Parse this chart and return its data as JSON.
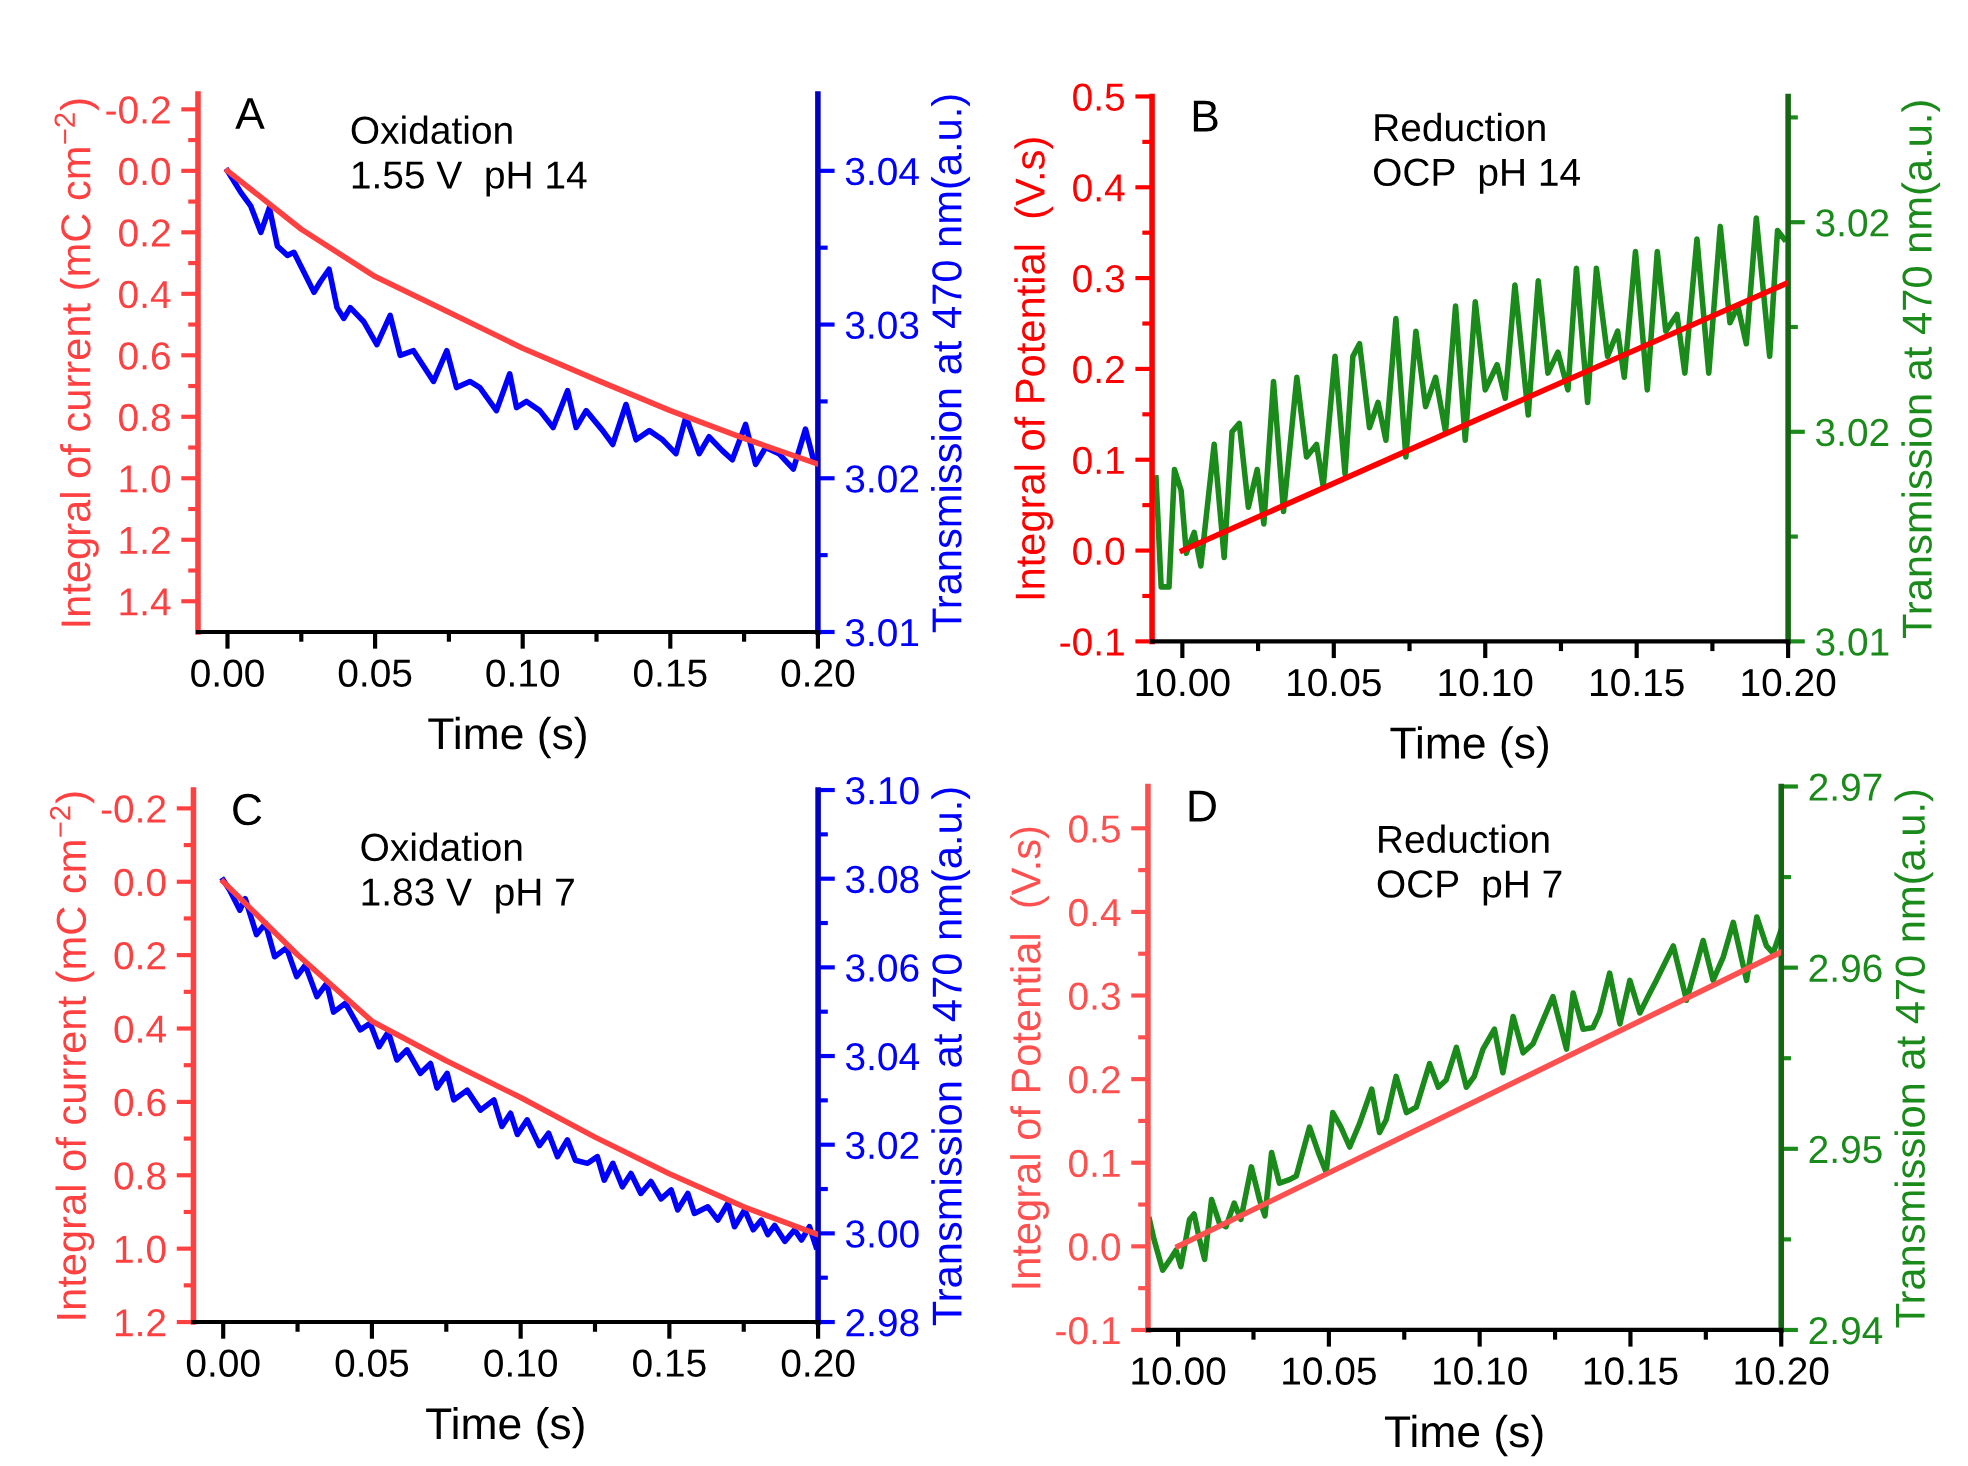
{
  "chart_data": [
    {
      "type": "line",
      "title": "A",
      "annotations": [
        "Oxidation\n1.55 V  pH 14"
      ],
      "xlabel": "Time (s)",
      "ylabel": "Integral of current (mC cm$^{−2}$)",
      "y2label": "Transmission at 470 nm(a.u.)",
      "xlim": [
        -0.01,
        0.2
      ],
      "xticks": [
        {
          "value": 0,
          "label": "0.00"
        },
        {
          "value": 0.05,
          "label": "0.05"
        },
        {
          "value": 0.1,
          "label": "0.10"
        },
        {
          "value": 0.15,
          "label": "0.15"
        },
        {
          "value": 0.2,
          "label": "0.20"
        },
        {
          "value": 0.025,
          "label": null
        },
        {
          "value": 0.075,
          "label": null
        },
        {
          "value": 0.125,
          "label": null
        },
        {
          "value": 0.175,
          "label": null
        }
      ],
      "ylim": [
        1.5,
        -0.25
      ],
      "yticks": [
        -0.2,
        {
          "value": 0,
          "label": "0.0"
        },
        0.2,
        0.4,
        0.6,
        0.8,
        {
          "value": 1,
          "label": "1.0"
        },
        1.2,
        1.4,
        {
          "value": -0.1,
          "label": null
        },
        {
          "value": 0.1,
          "label": null
        },
        {
          "value": 0.3,
          "label": null
        },
        {
          "value": 0.5,
          "label": null
        },
        {
          "value": 0.7,
          "label": null
        },
        {
          "value": 0.9,
          "label": null
        },
        {
          "value": 1.1,
          "label": null
        },
        {
          "value": 1.3,
          "label": null
        }
      ],
      "y2lim": [
        3.01,
        3.045
      ],
      "y2ticks": [
        3.01,
        3.02,
        3.03,
        3.04,
        {
          "value": 3.015,
          "label": null
        },
        {
          "value": 3.025,
          "label": null
        },
        {
          "value": 3.035,
          "label": null
        }
      ],
      "series": [
        {
          "color": "#ff4040",
          "x": [
            0,
            0.025,
            0.05,
            0.075,
            0.1,
            0.125,
            0.15,
            0.175,
            0.2
          ],
          "values": [
            0,
            0.19,
            0.344,
            0.46,
            0.577,
            0.68,
            0.78,
            0.87,
            0.954
          ]
        },
        {
          "color": "#0000ff",
          "axis": "y2",
          "x": [
            0,
            0.0045,
            0.0079,
            0.0113,
            0.0142,
            0.0169,
            0.0203,
            0.0225,
            0.0259,
            0.0293,
            0.0315,
            0.0344,
            0.0371,
            0.0394,
            0.0416,
            0.0461,
            0.0506,
            0.0551,
            0.0585,
            0.063,
            0.0698,
            0.0743,
            0.0776,
            0.0821,
            0.0855,
            0.0911,
            0.0956,
            0.0979,
            0.1013,
            0.1058,
            0.1103,
            0.1152,
            0.1181,
            0.1215,
            0.1271,
            0.1305,
            0.135,
            0.1384,
            0.1429,
            0.1474,
            0.1519,
            0.1553,
            0.1598,
            0.1631,
            0.1676,
            0.171,
            0.1755,
            0.1789,
            0.1823,
            0.1868,
            0.1917,
            0.1958,
            0.1985
          ],
          "values": [
            3.04,
            3.0386,
            3.0377,
            3.036,
            3.0376,
            3.0351,
            3.0345,
            3.0347,
            3.0334,
            3.0321,
            3.0328,
            3.0336,
            3.0311,
            3.0304,
            3.0311,
            3.0302,
            3.0287,
            3.0306,
            3.028,
            3.0283,
            3.0263,
            3.0283,
            3.0259,
            3.0263,
            3.0259,
            3.0244,
            3.0268,
            3.0246,
            3.025,
            3.0244,
            3.0233,
            3.0257,
            3.0233,
            3.0244,
            3.0231,
            3.0222,
            3.0248,
            3.0225,
            3.0231,
            3.0225,
            3.0216,
            3.024,
            3.0216,
            3.0227,
            3.0218,
            3.0212,
            3.0235,
            3.0209,
            3.022,
            3.0216,
            3.0206,
            3.0232,
            3.0212
          ]
        }
      ]
    },
    {
      "type": "line",
      "title": "B",
      "annotations": [
        "Reduction\nOCP  pH 14"
      ],
      "xlabel": "Time (s)",
      "ylabel": "Integral of Potential  (V.s)",
      "y2label": "Transmission at 470 nm(a.u.)",
      "xlim": [
        9.99,
        10.2
      ],
      "xticks": [
        {
          "value": 10.0,
          "label": "10.00"
        },
        {
          "value": 10.05,
          "label": "10.05"
        },
        {
          "value": 10.1,
          "label": "10.10"
        },
        {
          "value": 10.15,
          "label": "10.15"
        },
        {
          "value": 10.2,
          "label": "10.20"
        },
        {
          "value": 10.025,
          "label": null
        },
        {
          "value": 10.075,
          "label": null
        },
        {
          "value": 10.125,
          "label": null
        },
        {
          "value": 10.175,
          "label": null
        }
      ],
      "ylim": [
        -0.1,
        0.5
      ],
      "yticks": [
        -0.1,
        {
          "value": 0,
          "label": "0.0"
        },
        0.1,
        0.2,
        0.3,
        0.4,
        0.5,
        {
          "value": -0.05,
          "label": null
        },
        {
          "value": 0.05,
          "label": null
        },
        {
          "value": 0.15,
          "label": null
        },
        {
          "value": 0.25,
          "label": null
        },
        {
          "value": 0.35,
          "label": null
        },
        {
          "value": 0.45,
          "label": null
        }
      ],
      "y2lim": [
        3.01,
        3.023
      ],
      "y2ticks": [
        3.01,
        {
          "value": 3.015,
          "label": "3.02"
        },
        3.02,
        {
          "value": 3.0125,
          "label": null
        },
        {
          "value": 3.0175,
          "label": null
        },
        {
          "value": 3.0225,
          "label": null
        }
      ],
      "series": [
        {
          "color": "#ff0000",
          "x": [
            10.0,
            10.1,
            10.2
          ],
          "values": [
            0.0,
            0.148,
            0.295
          ]
        },
        {
          "color": "#1a8a1a",
          "axis": "y2",
          "x": [
            9.9913,
            9.993,
            9.9956,
            9.9974,
            9.9996,
            10.0013,
            10.0039,
            10.0061,
            10.0105,
            10.0138,
            10.0164,
            10.0188,
            10.0218,
            10.0247,
            10.0269,
            10.0301,
            10.0334,
            10.0378,
            10.041,
            10.0443,
            10.0465,
            10.0504,
            10.0537,
            10.0563,
            10.0585,
            10.0618,
            10.0646,
            10.0672,
            10.0705,
            10.0738,
            10.0771,
            10.0803,
            10.0836,
            10.0869,
            10.0902,
            10.0934,
            10.0967,
            10.1,
            10.1039,
            10.1066,
            10.1098,
            10.1142,
            10.1175,
            10.1207,
            10.124,
            10.1273,
            10.1301,
            10.1338,
            10.1367,
            10.1404,
            10.1437,
            10.1459,
            10.1496,
            10.1535,
            10.1568,
            10.1596,
            10.1633,
            10.1659,
            10.1699,
            10.1738,
            10.1776,
            10.1808,
            10.1834,
            10.1862,
            10.1895,
            10.1939,
            10.1965,
            10.1987
          ],
          "values": [
            3.0139,
            3.0113,
            3.0113,
            3.0141,
            3.0136,
            3.0121,
            3.0126,
            3.0118,
            3.0147,
            3.012,
            3.015,
            3.0152,
            3.0132,
            3.0141,
            3.0128,
            3.0162,
            3.0131,
            3.0163,
            3.0144,
            3.0147,
            3.0137,
            3.0168,
            3.014,
            3.0168,
            3.0171,
            3.0151,
            3.0157,
            3.0148,
            3.0177,
            3.0144,
            3.0174,
            3.0156,
            3.0163,
            3.015,
            3.018,
            3.0148,
            3.0181,
            3.016,
            3.0166,
            3.0158,
            3.0185,
            3.0154,
            3.0186,
            3.0164,
            3.0169,
            3.016,
            3.0189,
            3.0157,
            3.0189,
            3.0168,
            3.0174,
            3.0163,
            3.0193,
            3.016,
            3.0193,
            3.0174,
            3.0178,
            3.0164,
            3.0196,
            3.0164,
            3.0199,
            3.0176,
            3.018,
            3.0171,
            3.0201,
            3.0168,
            3.0198,
            3.0196
          ]
        }
      ]
    },
    {
      "type": "line",
      "title": "C",
      "annotations": [
        "Oxidation\n1.83 V  pH 7"
      ],
      "xlabel": "Time (s)",
      "ylabel": "Integral of current (mC cm$^{−2}$)",
      "y2label": "Transmission at 470 nm(a.u.)",
      "xlim": [
        -0.01,
        0.2
      ],
      "xticks": [
        {
          "value": 0,
          "label": "0.00"
        },
        {
          "value": 0.05,
          "label": "0.05"
        },
        {
          "value": 0.1,
          "label": "0.10"
        },
        {
          "value": 0.15,
          "label": "0.15"
        },
        {
          "value": 0.2,
          "label": "0.20"
        },
        {
          "value": 0.025,
          "label": null
        },
        {
          "value": 0.075,
          "label": null
        },
        {
          "value": 0.125,
          "label": null
        },
        {
          "value": 0.175,
          "label": null
        }
      ],
      "ylim": [
        1.2,
        -0.25
      ],
      "yticks": [
        -0.2,
        {
          "value": 0,
          "label": "0.0"
        },
        0.2,
        0.4,
        0.6,
        0.8,
        {
          "value": 1,
          "label": "1.0"
        },
        1.2,
        {
          "value": -0.1,
          "label": null
        },
        {
          "value": 0.1,
          "label": null
        },
        {
          "value": 0.3,
          "label": null
        },
        {
          "value": 0.5,
          "label": null
        },
        {
          "value": 0.7,
          "label": null
        },
        {
          "value": 0.9,
          "label": null
        },
        {
          "value": 1.1,
          "label": null
        }
      ],
      "y2lim": [
        2.98,
        3.1
      ],
      "y2ticks": [
        2.98,
        {
          "value": 3.0,
          "label": "3.00"
        },
        3.02,
        3.04,
        3.06,
        3.08,
        {
          "value": 3.1,
          "label": "3.10"
        },
        {
          "value": 2.99,
          "label": null
        },
        {
          "value": 3.01,
          "label": null
        },
        {
          "value": 3.03,
          "label": null
        },
        {
          "value": 3.05,
          "label": null
        },
        {
          "value": 3.07,
          "label": null
        },
        {
          "value": 3.09,
          "label": null
        }
      ],
      "series": [
        {
          "color": "#ff4040",
          "x": [
            0,
            0.025,
            0.05,
            0.075,
            0.1,
            0.125,
            0.15,
            0.175,
            0.2
          ],
          "values": [
            0,
            0.199,
            0.38,
            0.488,
            0.588,
            0.696,
            0.796,
            0.886,
            0.962
          ]
        },
        {
          "color": "#0000ff",
          "axis": "y2",
          "x": [
            0,
            0.0022,
            0.0056,
            0.0074,
            0.0112,
            0.0142,
            0.0173,
            0.0213,
            0.0247,
            0.0276,
            0.0315,
            0.0348,
            0.0371,
            0.0411,
            0.0461,
            0.0494,
            0.0524,
            0.0555,
            0.0584,
            0.0618,
            0.0663,
            0.0697,
            0.0719,
            0.0753,
            0.0775,
            0.082,
            0.0865,
            0.091,
            0.0937,
            0.0966,
            0.0989,
            0.1022,
            0.1063,
            0.1094,
            0.1124,
            0.1157,
            0.1184,
            0.1225,
            0.1258,
            0.1281,
            0.131,
            0.1342,
            0.1371,
            0.1404,
            0.1438,
            0.1472,
            0.1506,
            0.1528,
            0.1562,
            0.1584,
            0.1629,
            0.1663,
            0.1697,
            0.1719,
            0.1753,
            0.1782,
            0.1809,
            0.1831,
            0.1854,
            0.1888,
            0.1921,
            0.1944,
            0.1971,
            0.1993
          ],
          "values": [
            3.0797,
            3.0774,
            3.0729,
            3.0755,
            3.0674,
            3.0699,
            3.0624,
            3.0644,
            3.0579,
            3.0605,
            3.0534,
            3.0564,
            3.0499,
            3.0519,
            3.0459,
            3.0474,
            3.0421,
            3.0454,
            3.0391,
            3.0414,
            3.0361,
            3.0383,
            3.0328,
            3.0361,
            3.0301,
            3.0323,
            3.0278,
            3.0301,
            3.0241,
            3.0271,
            3.0223,
            3.0256,
            3.0198,
            3.0226,
            3.0173,
            3.0211,
            3.0165,
            3.0158,
            3.0173,
            3.012,
            3.0158,
            3.0105,
            3.0135,
            3.009,
            3.0117,
            3.0078,
            3.0098,
            3.0053,
            3.009,
            3.0045,
            3.006,
            3.003,
            3.0068,
            3.0015,
            3.0053,
            3.0008,
            3.003,
            2.9997,
            3.0018,
            2.9982,
            3.0008,
            2.9985,
            3.0015,
            2.997
          ]
        }
      ]
    },
    {
      "type": "line",
      "title": "D",
      "annotations": [
        "Reduction\nOCP  pH 7"
      ],
      "xlabel": "Time (s)",
      "ylabel": "Integral of Potential  (V.s)",
      "y2label": "Transmission at 470 nm(a.u.)",
      "xlim": [
        9.99,
        10.2
      ],
      "xticks": [
        {
          "value": 10.0,
          "label": "10.00"
        },
        {
          "value": 10.05,
          "label": "10.05"
        },
        {
          "value": 10.1,
          "label": "10.10"
        },
        {
          "value": 10.15,
          "label": "10.15"
        },
        {
          "value": 10.2,
          "label": "10.20"
        },
        {
          "value": 10.025,
          "label": null
        },
        {
          "value": 10.075,
          "label": null
        },
        {
          "value": 10.125,
          "label": null
        },
        {
          "value": 10.175,
          "label": null
        }
      ],
      "ylim": [
        -0.1,
        0.55
      ],
      "yticks": [
        -0.1,
        {
          "value": 0,
          "label": "0.0"
        },
        0.1,
        0.2,
        0.3,
        0.4,
        0.5,
        {
          "value": -0.05,
          "label": null
        },
        {
          "value": 0.05,
          "label": null
        },
        {
          "value": 0.15,
          "label": null
        },
        {
          "value": 0.25,
          "label": null
        },
        {
          "value": 0.35,
          "label": null
        },
        {
          "value": 0.45,
          "label": null
        }
      ],
      "y2lim": [
        2.94,
        2.97
      ],
      "y2ticks": [
        2.94,
        2.95,
        2.96,
        2.97,
        {
          "value": 2.945,
          "label": null
        },
        {
          "value": 2.955,
          "label": null
        },
        {
          "value": 2.965,
          "label": null
        }
      ],
      "series": [
        {
          "color": "#ff5050",
          "x": [
            10.0,
            10.1,
            10.2
          ],
          "values": [
            0.0,
            0.176,
            0.352
          ]
        },
        {
          "color": "#1a8a1a",
          "axis": "y2",
          "x": [
            9.9905,
            9.992,
            9.9949,
            9.9978,
            9.9993,
            10.0009,
            10.0038,
            10.0053,
            10.0071,
            10.0088,
            10.0111,
            10.0137,
            10.0159,
            10.0186,
            10.0208,
            10.0243,
            10.027,
            10.0288,
            10.031,
            10.0336,
            10.0369,
            10.0392,
            10.0436,
            10.0465,
            10.0491,
            10.0513,
            10.054,
            10.0569,
            10.0602,
            10.0642,
            10.0668,
            10.069,
            10.0723,
            10.0757,
            10.079,
            10.0834,
            10.0863,
            10.0889,
            10.0923,
            10.0956,
            10.0982,
            10.1011,
            10.1049,
            10.1077,
            10.1111,
            10.1144,
            10.1177,
            10.1243,
            10.1288,
            10.131,
            10.1343,
            10.1376,
            10.1398,
            10.1431,
            10.1465,
            10.1498,
            10.1531,
            10.1564,
            10.1586,
            10.1642,
            10.1686,
            10.1708,
            10.1741,
            10.1774,
            10.1808,
            10.1841,
            10.1885,
            10.1919,
            10.1951,
            10.1973,
            10.2
          ],
          "values": [
            2.9461,
            2.945,
            2.9433,
            2.944,
            2.9444,
            2.9435,
            2.9461,
            2.9464,
            2.945,
            2.9439,
            2.9472,
            2.9459,
            2.9457,
            2.947,
            2.9461,
            2.949,
            2.9472,
            2.9463,
            2.9498,
            2.9481,
            2.9483,
            2.9485,
            2.9512,
            2.9498,
            2.9487,
            2.952,
            2.9512,
            2.9501,
            2.9514,
            2.9533,
            2.9509,
            2.9516,
            2.954,
            2.952,
            2.9523,
            2.9547,
            2.9534,
            2.9538,
            2.9556,
            2.9534,
            2.954,
            2.9555,
            2.9566,
            2.9542,
            2.9573,
            2.9553,
            2.9558,
            2.9584,
            2.9555,
            2.9586,
            2.9566,
            2.9567,
            2.9575,
            2.9597,
            2.9569,
            2.9593,
            2.9575,
            2.9586,
            2.9593,
            2.9612,
            2.9582,
            2.9595,
            2.9615,
            2.9593,
            2.9606,
            2.9625,
            2.9593,
            2.9628,
            2.9612,
            2.9608,
            2.9621
          ]
        }
      ]
    }
  ]
}
